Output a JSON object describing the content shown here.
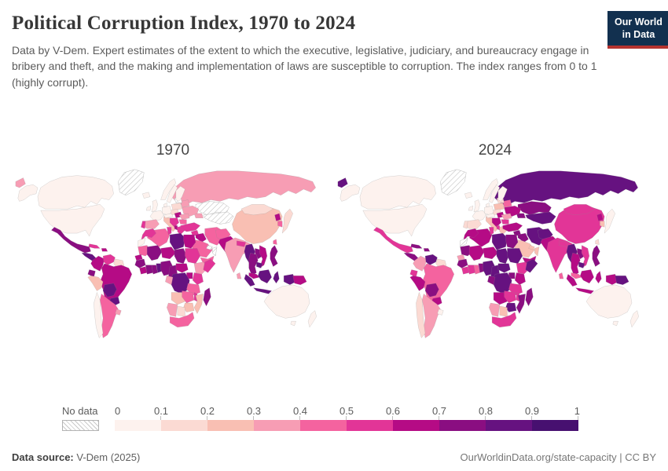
{
  "header": {
    "title": "Political Corruption Index, 1970 to 2024",
    "subtitle": "Data by V-Dem. Expert estimates of the extent to which the executive, legislative, judiciary, and bureaucracy engage in bribery and theft, and the making and implementation of laws are susceptible to corruption. The index ranges from 0 to 1 (highly corrupt).",
    "logo": {
      "line1": "Our World",
      "line2": "in Data",
      "bg_color": "#12304f",
      "accent_color": "#b5332f"
    }
  },
  "legend": {
    "no_data_label": "No data",
    "ticks": [
      "0",
      "0.1",
      "0.2",
      "0.3",
      "0.4",
      "0.5",
      "0.6",
      "0.7",
      "0.8",
      "0.9",
      "1"
    ],
    "bin_colors": [
      "#fdf2ee",
      "#fbdad3",
      "#f9bfb3",
      "#f79db4",
      "#f4639f",
      "#e23597",
      "#b50b85",
      "#8a0e81",
      "#661280",
      "#471070"
    ]
  },
  "footer": {
    "source_label": "Data source:",
    "source_value": " V-Dem (2025)",
    "right_text": "OurWorldinData.org/state-capacity | CC BY"
  },
  "chart_data": {
    "type": "choropleth",
    "title": "Political Corruption Index",
    "years": [
      "1970",
      "2024"
    ],
    "value_range": [
      0,
      1
    ],
    "bin_size": 0.1,
    "legend_no_data": true,
    "regions": {
      "canada": {
        "name": "Canada",
        "values": {
          "1970": 0.06,
          "2024": 0.05
        }
      },
      "usa": {
        "name": "United States",
        "values": {
          "1970": 0.05,
          "2024": 0.07
        }
      },
      "greenland": {
        "name": "Greenland",
        "values": {
          "1970": null,
          "2024": null
        }
      },
      "mexico": {
        "name": "Mexico",
        "values": {
          "1970": 0.78,
          "2024": 0.58
        }
      },
      "centam": {
        "name": "Central America",
        "values": {
          "1970": 0.82,
          "2024": 0.78
        }
      },
      "cuba": {
        "name": "Cuba",
        "values": {
          "1970": 0.55,
          "2024": 0.72
        }
      },
      "hispaniola": {
        "name": "Hispaniola",
        "values": {
          "1970": 0.6,
          "2024": 0.78
        }
      },
      "colombia": {
        "name": "Colombia",
        "values": {
          "1970": 0.62,
          "2024": 0.32
        }
      },
      "venezuela": {
        "name": "Venezuela",
        "values": {
          "1970": 0.55,
          "2024": 0.88
        }
      },
      "guyanas": {
        "name": "Guyanas",
        "values": {
          "1970": 0.18,
          "2024": 0.15
        }
      },
      "ecuador": {
        "name": "Ecuador",
        "values": {
          "1970": 0.75,
          "2024": 0.55
        }
      },
      "peru": {
        "name": "Peru",
        "values": {
          "1970": 0.25,
          "2024": 0.65
        }
      },
      "brazil": {
        "name": "Brazil",
        "values": {
          "1970": 0.62,
          "2024": 0.45
        }
      },
      "bolivia": {
        "name": "Bolivia",
        "values": {
          "1970": 0.85,
          "2024": 0.75
        }
      },
      "paraguay": {
        "name": "Paraguay",
        "values": {
          "1970": 0.82,
          "2024": 0.65
        }
      },
      "chile": {
        "name": "Chile",
        "values": {
          "1970": 0.08,
          "2024": 0.12
        }
      },
      "argentina": {
        "name": "Argentina",
        "values": {
          "1970": 0.45,
          "2024": 0.32
        }
      },
      "uruguay": {
        "name": "Uruguay",
        "values": {
          "1970": 0.35,
          "2024": 0.05
        }
      },
      "iceland": {
        "name": "Iceland",
        "values": {
          "1970": 0.03,
          "2024": 0.02
        }
      },
      "ireland": {
        "name": "Ireland",
        "values": {
          "1970": 0.05,
          "2024": 0.04
        }
      },
      "uk": {
        "name": "United Kingdom",
        "values": {
          "1970": 0.04,
          "2024": 0.06
        }
      },
      "norway": {
        "name": "Norway",
        "values": {
          "1970": 0.02,
          "2024": 0.02
        }
      },
      "sweden": {
        "name": "Sweden",
        "values": {
          "1970": 0.02,
          "2024": 0.02
        }
      },
      "finland": {
        "name": "Finland",
        "values": {
          "1970": 0.03,
          "2024": 0.02
        }
      },
      "denmark": {
        "name": "Denmark",
        "values": {
          "1970": 0.02,
          "2024": 0.02
        }
      },
      "germany": {
        "name": "Germany",
        "values": {
          "1970": 0.06,
          "2024": 0.04
        }
      },
      "france": {
        "name": "France",
        "values": {
          "1970": 0.06,
          "2024": 0.08
        }
      },
      "spain": {
        "name": "Spain",
        "values": {
          "1970": 0.38,
          "2024": 0.18
        }
      },
      "portugal": {
        "name": "Portugal",
        "values": {
          "1970": 0.52,
          "2024": 0.15
        }
      },
      "italy": {
        "name": "Italy",
        "values": {
          "1970": 0.22,
          "2024": 0.2
        }
      },
      "austria": {
        "name": "Austria/Switzerland",
        "values": {
          "1970": 0.05,
          "2024": 0.05
        }
      },
      "czech": {
        "name": "Czechia/Slovakia",
        "values": {
          "1970": 0.12,
          "2024": 0.15
        }
      },
      "poland": {
        "name": "Poland",
        "values": {
          "1970": 0.18,
          "2024": 0.2
        }
      },
      "baltics": {
        "name": "Baltic states",
        "values": {
          "1970": null,
          "2024": 0.1
        }
      },
      "belarus": {
        "name": "Belarus",
        "values": {
          "1970": 0.37,
          "2024": 0.45
        }
      },
      "ukraine": {
        "name": "Ukraine",
        "values": {
          "1970": 0.37,
          "2024": 0.6
        }
      },
      "hungary": {
        "name": "Hungary",
        "values": {
          "1970": 0.6,
          "2024": 0.62
        }
      },
      "romania": {
        "name": "Romania",
        "values": {
          "1970": 0.38,
          "2024": 0.35
        }
      },
      "yugoslavia": {
        "name": "Serbia (fmr. Yugoslavia)",
        "values": {
          "1970": 0.58,
          "2024": 0.6
        }
      },
      "bulgaria": {
        "name": "Bulgaria",
        "values": {
          "1970": 0.45,
          "2024": 0.5
        }
      },
      "albania": {
        "name": "Albania",
        "values": {
          "1970": 0.65,
          "2024": 0.55
        }
      },
      "greece": {
        "name": "Greece",
        "values": {
          "1970": 0.52,
          "2024": 0.25
        }
      },
      "russia": {
        "name": "Russia",
        "values": {
          "1970": 0.37,
          "2024": 0.82
        }
      },
      "kazakhstan": {
        "name": "Kazakhstan",
        "values": {
          "1970": null,
          "2024": 0.78
        }
      },
      "centralasia": {
        "name": "Central Asia",
        "values": {
          "1970": null,
          "2024": 0.85
        }
      },
      "caucasus": {
        "name": "Caucasus",
        "values": {
          "1970": 0.37,
          "2024": 0.75
        }
      },
      "turkey": {
        "name": "Turkey",
        "values": {
          "1970": 0.5,
          "2024": 0.68
        }
      },
      "syria": {
        "name": "Syria",
        "values": {
          "1970": 0.55,
          "2024": 0.78
        }
      },
      "iraq": {
        "name": "Iraq",
        "values": {
          "1970": 0.62,
          "2024": 0.78
        }
      },
      "iran": {
        "name": "Iran",
        "values": {
          "1970": 0.42,
          "2024": 0.8
        }
      },
      "saudi": {
        "name": "Saudi Arabia",
        "values": {
          "1970": 0.45,
          "2024": 0.25
        }
      },
      "jordan": {
        "name": "Jordan/Israel",
        "values": {
          "1970": 0.25,
          "2024": 0.25
        }
      },
      "yemen": {
        "name": "Yemen",
        "values": {
          "1970": 0.45,
          "2024": 0.68
        }
      },
      "oman": {
        "name": "Oman",
        "values": {
          "1970": null,
          "2024": 0.22
        }
      },
      "uae": {
        "name": "United Arab Emirates",
        "values": {
          "1970": null,
          "2024": 0.22
        }
      },
      "morocco": {
        "name": "Morocco",
        "values": {
          "1970": 0.55,
          "2024": 0.68
        }
      },
      "wsahara": {
        "name": "Western Sahara",
        "values": {
          "1970": 0.08,
          "2024": null
        }
      },
      "algeria": {
        "name": "Algeria",
        "values": {
          "1970": 0.4,
          "2024": 0.65
        }
      },
      "tunisia": {
        "name": "Tunisia",
        "values": {
          "1970": 0.5,
          "2024": 0.55
        }
      },
      "libya": {
        "name": "Libya",
        "values": {
          "1970": 0.82,
          "2024": 0.85
        }
      },
      "egypt": {
        "name": "Egypt",
        "values": {
          "1970": 0.65,
          "2024": 0.78
        }
      },
      "mauritania": {
        "name": "Mauritania",
        "values": {
          "1970": 0.45,
          "2024": 0.78
        }
      },
      "mali": {
        "name": "Mali",
        "values": {
          "1970": 0.72,
          "2024": 0.62
        }
      },
      "niger": {
        "name": "Niger",
        "values": {
          "1970": 0.62,
          "2024": 0.65
        }
      },
      "chad": {
        "name": "Chad",
        "values": {
          "1970": 0.78,
          "2024": 0.85
        }
      },
      "sudan": {
        "name": "Sudan",
        "values": {
          "1970": 0.55,
          "2024": 0.82
        }
      },
      "senegal": {
        "name": "Senegal",
        "values": {
          "1970": 0.6,
          "2024": 0.35
        }
      },
      "guinea": {
        "name": "Guinea",
        "values": {
          "1970": 0.75,
          "2024": 0.72
        }
      },
      "sierraleone": {
        "name": "Sierra Leone/Liberia",
        "values": {
          "1970": 0.65,
          "2024": 0.55
        }
      },
      "ivorycoast": {
        "name": "Cote d'Ivoire",
        "values": {
          "1970": 0.78,
          "2024": 0.55
        }
      },
      "ghana": {
        "name": "Ghana",
        "values": {
          "1970": 0.72,
          "2024": 0.48
        }
      },
      "togobenin": {
        "name": "Togo/Benin",
        "values": {
          "1970": 0.8,
          "2024": 0.72
        }
      },
      "nigeria": {
        "name": "Nigeria",
        "values": {
          "1970": 0.78,
          "2024": 0.82
        }
      },
      "cameroon": {
        "name": "Cameroon",
        "values": {
          "1970": 0.78,
          "2024": 0.85
        }
      },
      "car": {
        "name": "Central African Republic",
        "values": {
          "1970": 0.62,
          "2024": 0.82
        }
      },
      "ethiopia": {
        "name": "Ethiopia",
        "values": {
          "1970": 0.38,
          "2024": 0.55
        }
      },
      "somalia": {
        "name": "Somalia",
        "values": {
          "1970": 0.55,
          "2024": 0.82
        }
      },
      "uganda": {
        "name": "Uganda",
        "values": {
          "1970": 0.6,
          "2024": 0.78
        }
      },
      "kenya": {
        "name": "Kenya",
        "values": {
          "1970": 0.55,
          "2024": 0.62
        }
      },
      "drc": {
        "name": "Democratic Republic of Congo",
        "values": {
          "1970": 0.85,
          "2024": 0.88
        }
      },
      "congogabon": {
        "name": "Congo/Gabon",
        "values": {
          "1970": 0.35,
          "2024": 0.75
        }
      },
      "tanzania": {
        "name": "Tanzania",
        "values": {
          "1970": 0.4,
          "2024": 0.55
        }
      },
      "angola": {
        "name": "Angola",
        "values": {
          "1970": 0.22,
          "2024": 0.6
        }
      },
      "zambia": {
        "name": "Zambia",
        "values": {
          "1970": 0.42,
          "2024": 0.55
        }
      },
      "malawi": {
        "name": "Malawi",
        "values": {
          "1970": 0.5,
          "2024": 0.55
        }
      },
      "mozambique": {
        "name": "Mozambique",
        "values": {
          "1970": 0.28,
          "2024": 0.7
        }
      },
      "zimbabwe": {
        "name": "Zimbabwe",
        "values": {
          "1970": 0.25,
          "2024": 0.8
        }
      },
      "namibia": {
        "name": "Namibia",
        "values": {
          "1970": 0.3,
          "2024": 0.3
        }
      },
      "botswana": {
        "name": "Botswana",
        "values": {
          "1970": 0.15,
          "2024": 0.25
        }
      },
      "southafrica": {
        "name": "South Africa",
        "values": {
          "1970": 0.42,
          "2024": 0.55
        }
      },
      "madagascar": {
        "name": "Madagascar",
        "values": {
          "1970": 0.75,
          "2024": 0.78
        }
      },
      "afghanistan": {
        "name": "Afghanistan",
        "values": {
          "1970": 0.42,
          "2024": 0.82
        }
      },
      "pakistan": {
        "name": "Pakistan",
        "values": {
          "1970": 0.68,
          "2024": 0.68
        }
      },
      "india": {
        "name": "India",
        "values": {
          "1970": 0.35,
          "2024": 0.52
        }
      },
      "nepal": {
        "name": "Nepal",
        "values": {
          "1970": 0.55,
          "2024": 0.55
        }
      },
      "bangladesh": {
        "name": "Bangladesh",
        "values": {
          "1970": 0.72,
          "2024": 0.78
        }
      },
      "srilanka": {
        "name": "Sri Lanka",
        "values": {
          "1970": 0.35,
          "2024": 0.45
        }
      },
      "china": {
        "name": "China",
        "values": {
          "1970": 0.25,
          "2024": 0.58
        }
      },
      "mongolia": {
        "name": "Mongolia",
        "values": {
          "1970": 0.15,
          "2024": 0.52
        }
      },
      "nkorea": {
        "name": "North Korea",
        "values": {
          "1970": 0.6,
          "2024": 0.65
        }
      },
      "skorea": {
        "name": "South Korea",
        "values": {
          "1970": 0.45,
          "2024": 0.2
        }
      },
      "japan": {
        "name": "Japan",
        "values": {
          "1970": 0.12,
          "2024": 0.08
        }
      },
      "taiwan": {
        "name": "Taiwan",
        "values": {
          "1970": 0.45,
          "2024": 0.15
        }
      },
      "myanmar": {
        "name": "Myanmar",
        "values": {
          "1970": 0.8,
          "2024": 0.82
        }
      },
      "thailand": {
        "name": "Thailand",
        "values": {
          "1970": 0.78,
          "2024": 0.6
        }
      },
      "laos": {
        "name": "Laos",
        "values": {
          "1970": 0.72,
          "2024": 0.75
        }
      },
      "vietnam": {
        "name": "Vietnam",
        "values": {
          "1970": 0.65,
          "2024": 0.55
        }
      },
      "cambodia": {
        "name": "Cambodia",
        "values": {
          "1970": 0.85,
          "2024": 0.85
        }
      },
      "malaysia": {
        "name": "Malaysia",
        "values": {
          "1970": 0.6,
          "2024": 0.42
        }
      },
      "indonesia": {
        "name": "Indonesia",
        "values": {
          "1970": 0.85,
          "2024": 0.68
        }
      },
      "png": {
        "name": "Papua New Guinea",
        "values": {
          "1970": 0.6,
          "2024": 0.82
        }
      },
      "philippines": {
        "name": "Philippines",
        "values": {
          "1970": 0.72,
          "2024": 0.75
        }
      },
      "australia": {
        "name": "Australia",
        "values": {
          "1970": 0.04,
          "2024": 0.06
        }
      },
      "nz": {
        "name": "New Zealand",
        "values": {
          "1970": 0.03,
          "2024": 0.02
        }
      }
    }
  }
}
